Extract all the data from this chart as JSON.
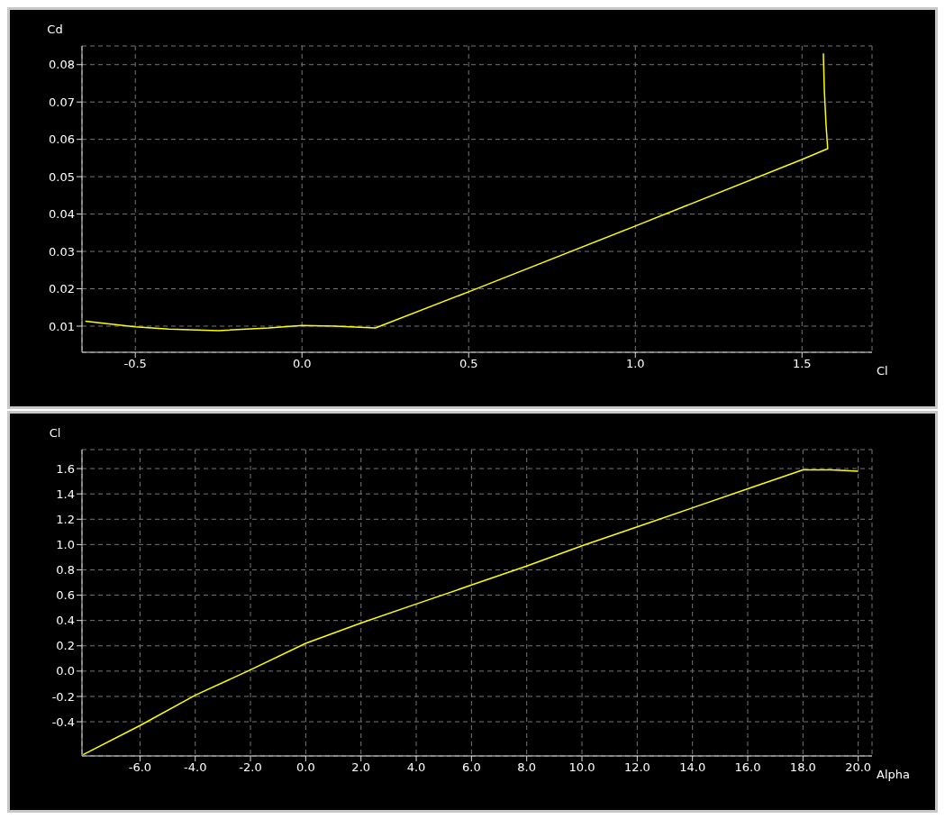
{
  "chart_data": [
    {
      "type": "line",
      "xlabel": "Cl",
      "ylabel": "Cd",
      "xlim": [
        -0.66,
        1.71
      ],
      "ylim": [
        0.003,
        0.085
      ],
      "xticks": [
        -0.5,
        {
          "value": 0,
          "label": "0.0"
        },
        0.5,
        {
          "value": 1,
          "label": "1.0"
        },
        1.5
      ],
      "yticks": [
        0.01,
        0.02,
        0.03,
        0.04,
        0.05,
        0.06,
        0.07,
        0.08
      ],
      "grid": true,
      "marker": "none",
      "line_style": "solid",
      "series": [
        {
          "color": "#ffff00",
          "x": [
            -0.65,
            -0.5,
            -0.4,
            -0.25,
            -0.1,
            0,
            0.1,
            0.22,
            0.5,
            1.0,
            1.5,
            1.577,
            1.572,
            1.567,
            1.564
          ],
          "values": [
            0.0113,
            0.0098,
            0.0092,
            0.0088,
            0.0095,
            0.0102,
            0.01,
            0.0095,
            0.0192,
            0.0368,
            0.0546,
            0.0575,
            0.064,
            0.073,
            0.083
          ]
        }
      ]
    },
    {
      "type": "line",
      "xlabel": "Alpha",
      "ylabel": "Cl",
      "xlim": [
        -8.1,
        20.5
      ],
      "ylim": [
        -0.67,
        1.75
      ],
      "xticks": [
        {
          "value": -6,
          "label": "-6.0"
        },
        {
          "value": -4,
          "label": "-4.0"
        },
        {
          "value": -2,
          "label": "-2.0"
        },
        {
          "value": 0,
          "label": "0.0"
        },
        {
          "value": 2,
          "label": "2.0"
        },
        {
          "value": 4,
          "label": "4.0"
        },
        {
          "value": 6,
          "label": "6.0"
        },
        {
          "value": 8,
          "label": "8.0"
        },
        {
          "value": 10,
          "label": "10.0"
        },
        {
          "value": 12,
          "label": "12.0"
        },
        {
          "value": 14,
          "label": "14.0"
        },
        {
          "value": 16,
          "label": "16.0"
        },
        {
          "value": 18,
          "label": "18.0"
        },
        {
          "value": 20,
          "label": "20.0"
        }
      ],
      "yticks": [
        -0.4,
        -0.2,
        {
          "value": 0,
          "label": "0.0"
        },
        0.2,
        0.4,
        0.6,
        0.8,
        {
          "value": 1,
          "label": "1.0"
        },
        1.2,
        1.4,
        1.6
      ],
      "grid": true,
      "marker": "none",
      "line_style": "solid",
      "series": [
        {
          "color": "#ffff00",
          "x": [
            -8.06,
            -6,
            -4,
            -2.1,
            0,
            2,
            4,
            6,
            8,
            10,
            12,
            14,
            16,
            18,
            19,
            20
          ],
          "values": [
            -0.66,
            -0.43,
            -0.19,
            0,
            0.22,
            0.38,
            0.53,
            0.68,
            0.83,
            0.99,
            1.14,
            1.29,
            1.44,
            1.59,
            1.59,
            1.58
          ]
        }
      ]
    }
  ]
}
